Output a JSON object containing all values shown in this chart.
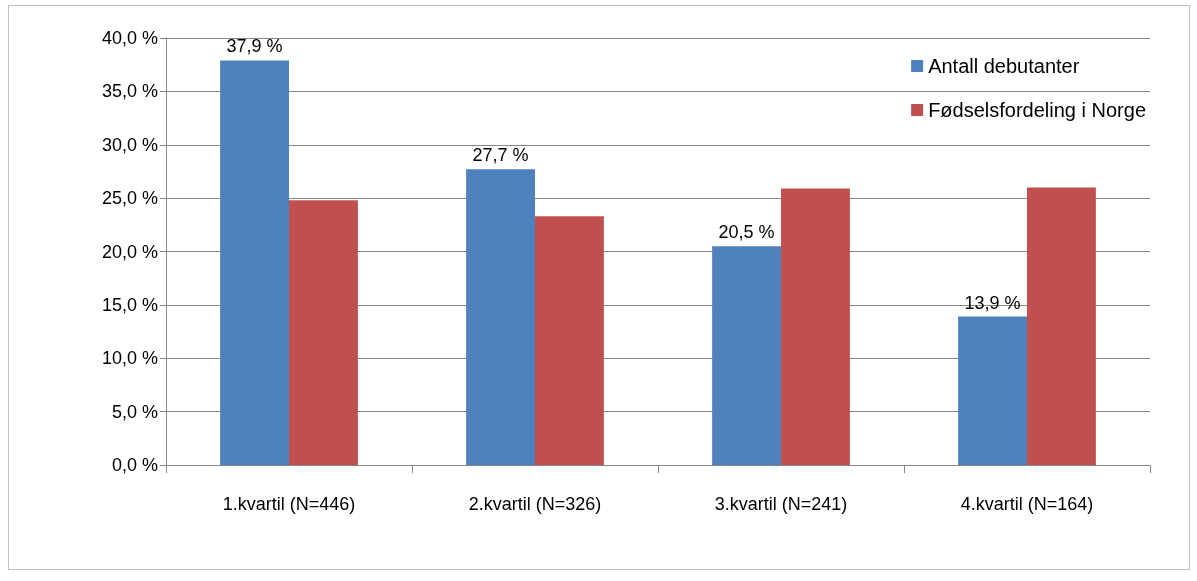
{
  "chart_data": {
    "type": "bar",
    "categories": [
      "1.kvartil (N=446)",
      "2.kvartil (N=326)",
      "3.kvartil (N=241)",
      "4.kvartil (N=164)"
    ],
    "series": [
      {
        "name": "Antall debutanter",
        "color": "#4f81bd",
        "values": [
          37.9,
          27.7,
          20.5,
          13.9
        ],
        "value_labels": [
          "37,9 %",
          "27,7 %",
          "20,5 %",
          "13,9 %"
        ]
      },
      {
        "name": "Fødselsfordeling i Norge",
        "color": "#c0504d",
        "values": [
          24.8,
          23.3,
          25.9,
          26.0
        ]
      }
    ],
    "ylim": [
      0,
      40
    ],
    "yticks": [
      {
        "value": 0,
        "label": "0,0 %"
      },
      {
        "value": 5,
        "label": "5,0 %"
      },
      {
        "value": 10,
        "label": "10,0 %"
      },
      {
        "value": 15,
        "label": "15,0 %"
      },
      {
        "value": 20,
        "label": "20,0 %"
      },
      {
        "value": 25,
        "label": "25,0 %"
      },
      {
        "value": 30,
        "label": "30,0 %"
      },
      {
        "value": 35,
        "label": "35,0 %"
      },
      {
        "value": 40,
        "label": "40,0 %"
      }
    ],
    "grid": "y",
    "legend": "top right"
  }
}
